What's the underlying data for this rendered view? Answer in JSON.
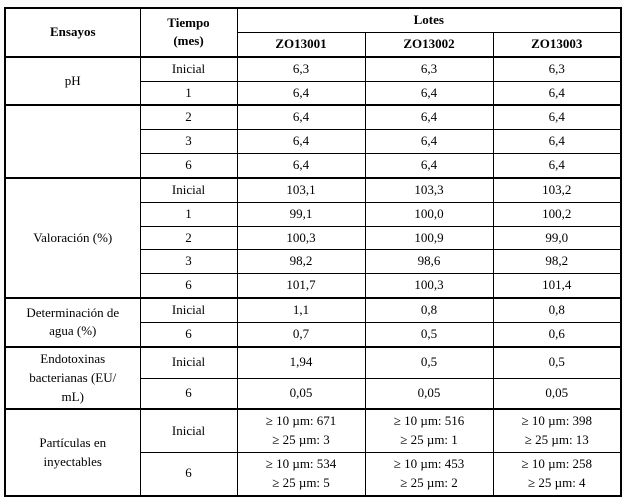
{
  "table": {
    "header": {
      "ensayos": "Ensayos",
      "tiempo": "Tiempo\n(mes)",
      "lotes": "Lotes",
      "lot1": "ZO13001",
      "lot2": "ZO13002",
      "lot3": "ZO13003"
    },
    "sections": [
      {
        "label": "pH",
        "rows": [
          {
            "time": "Inicial",
            "c1": "6,3",
            "c2": "6,3",
            "c3": "6,3"
          },
          {
            "time": "1",
            "c1": "6,4",
            "c2": "6,4",
            "c3": "6,4"
          }
        ]
      },
      {
        "label": "",
        "rows": [
          {
            "time": "2",
            "c1": "6,4",
            "c2": "6,4",
            "c3": "6,4"
          },
          {
            "time": "3",
            "c1": "6,4",
            "c2": "6,4",
            "c3": "6,4"
          },
          {
            "time": "6",
            "c1": "6,4",
            "c2": "6,4",
            "c3": "6,4"
          }
        ]
      },
      {
        "label": "Valoración (%)",
        "rows": [
          {
            "time": "Inicial",
            "c1": "103,1",
            "c2": "103,3",
            "c3": "103,2"
          },
          {
            "time": "1",
            "c1": "99,1",
            "c2": "100,0",
            "c3": "100,2"
          },
          {
            "time": "2",
            "c1": "100,3",
            "c2": "100,9",
            "c3": "99,0"
          },
          {
            "time": "3",
            "c1": "98,2",
            "c2": "98,6",
            "c3": "98,2"
          },
          {
            "time": "6",
            "c1": "101,7",
            "c2": "100,3",
            "c3": "101,4"
          }
        ]
      },
      {
        "label": "Determinación de\nagua (%)",
        "rows": [
          {
            "time": "Inicial",
            "c1": "1,1",
            "c2": "0,8",
            "c3": "0,8"
          },
          {
            "time": "6",
            "c1": "0,7",
            "c2": "0,5",
            "c3": "0,6"
          }
        ]
      },
      {
        "label": "Endotoxinas\nbacterianas (EU/\nmL)",
        "rows": [
          {
            "time": "Inicial",
            "c1": "1,94",
            "c2": "0,5",
            "c3": "0,5"
          },
          {
            "time": "6",
            "c1": "0,05",
            "c2": "0,05",
            "c3": "0,05"
          }
        ]
      },
      {
        "label": "Partículas en\ninyectables",
        "rows": [
          {
            "time": "Inicial",
            "c1": "≥ 10 µm: 671\n≥ 25 µm: 3",
            "c2": "≥ 10 µm: 516\n≥ 25 µm: 1",
            "c3": "≥ 10 µm: 398\n≥ 25 µm: 13"
          },
          {
            "time": "6",
            "c1": "≥ 10 µm: 534\n≥ 25 µm: 5",
            "c2": "≥ 10 µm: 453\n≥ 25 µm: 2",
            "c3": "≥ 10 µm: 258\n≥ 25 µm: 4"
          }
        ]
      }
    ]
  }
}
